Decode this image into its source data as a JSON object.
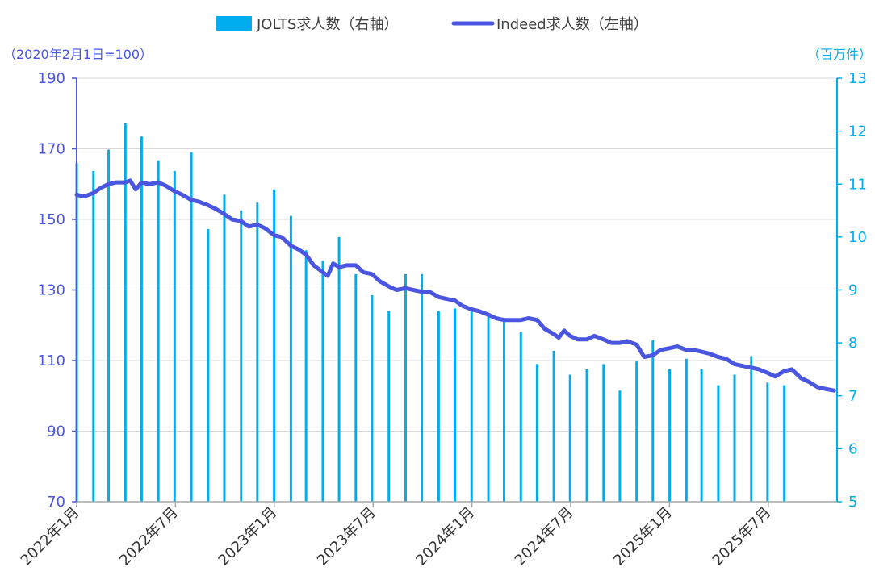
{
  "legend": {
    "bar_label": "JOLTS求人数（右軸）",
    "line_label": "Indeed求人数（左軸）"
  },
  "units": {
    "left": "（2020年2月1日=100）",
    "right": "（百万件）"
  },
  "colors": {
    "bar": "#00aeef",
    "line": "#4a55e0",
    "grid": "#d9d9d9"
  },
  "chart_data": {
    "type": "bar+line",
    "left_axis": {
      "min": 70,
      "max": 190,
      "ticks": [
        70,
        90,
        110,
        130,
        150,
        170,
        190
      ]
    },
    "right_axis": {
      "min": 5,
      "max": 13,
      "ticks": [
        5,
        6,
        7,
        8,
        9,
        10,
        11,
        12,
        13
      ]
    },
    "x_tick_labels": [
      "2022年1月",
      "2022年7月",
      "2023年1月",
      "2023年7月",
      "2024年1月",
      "2024年7月",
      "2025年1月",
      "2025年7月"
    ],
    "bar_series": {
      "name": "JOLTS求人数（右軸）",
      "axis": "right",
      "months": [
        "2022-01",
        "2022-02",
        "2022-03",
        "2022-04",
        "2022-05",
        "2022-06",
        "2022-07",
        "2022-08",
        "2022-09",
        "2022-10",
        "2022-11",
        "2022-12",
        "2023-01",
        "2023-02",
        "2023-03",
        "2023-04",
        "2023-05",
        "2023-06",
        "2023-07",
        "2023-08",
        "2023-09",
        "2023-10",
        "2023-11",
        "2023-12",
        "2024-01",
        "2024-02",
        "2024-03",
        "2024-04",
        "2024-05",
        "2024-06",
        "2024-07",
        "2024-08",
        "2024-09",
        "2024-10",
        "2024-11",
        "2024-12",
        "2025-01",
        "2025-02",
        "2025-03",
        "2025-04",
        "2025-05",
        "2025-06",
        "2025-07",
        "2025-08"
      ],
      "values": [
        11.4,
        11.25,
        11.65,
        12.15,
        11.9,
        11.45,
        11.25,
        11.6,
        10.15,
        10.8,
        10.5,
        10.65,
        10.9,
        10.4,
        9.75,
        9.55,
        10.0,
        9.3,
        8.9,
        8.6,
        9.3,
        9.3,
        8.6,
        8.65,
        8.6,
        8.5,
        8.45,
        8.2,
        7.6,
        7.85,
        7.4,
        7.5,
        7.6,
        7.1,
        7.65,
        8.05,
        7.5,
        7.7,
        7.5,
        7.2,
        7.4,
        7.75,
        7.25,
        7.2
      ]
    },
    "line_series": {
      "name": "Indeed求人数（左軸）",
      "axis": "left",
      "points": [
        [
          "2022-01-01",
          157
        ],
        [
          "2022-01-15",
          156.5
        ],
        [
          "2022-02-01",
          157.5
        ],
        [
          "2022-02-15",
          159
        ],
        [
          "2022-03-01",
          160
        ],
        [
          "2022-03-15",
          160.5
        ],
        [
          "2022-04-01",
          160.5
        ],
        [
          "2022-04-10",
          161
        ],
        [
          "2022-04-20",
          158.5
        ],
        [
          "2022-05-01",
          160.5
        ],
        [
          "2022-05-15",
          160
        ],
        [
          "2022-06-01",
          160.5
        ],
        [
          "2022-06-15",
          159.5
        ],
        [
          "2022-07-01",
          158
        ],
        [
          "2022-07-15",
          157
        ],
        [
          "2022-08-01",
          155.5
        ],
        [
          "2022-08-15",
          155
        ],
        [
          "2022-09-01",
          154
        ],
        [
          "2022-09-15",
          153
        ],
        [
          "2022-10-01",
          151.5
        ],
        [
          "2022-10-15",
          150
        ],
        [
          "2022-11-01",
          149.5
        ],
        [
          "2022-11-15",
          148
        ],
        [
          "2022-12-01",
          148.5
        ],
        [
          "2022-12-15",
          147.5
        ],
        [
          "2023-01-01",
          145.5
        ],
        [
          "2023-01-15",
          145
        ],
        [
          "2023-02-01",
          142.5
        ],
        [
          "2023-02-15",
          141.5
        ],
        [
          "2023-03-01",
          140
        ],
        [
          "2023-03-15",
          137
        ],
        [
          "2023-04-01",
          135
        ],
        [
          "2023-04-10",
          134
        ],
        [
          "2023-04-20",
          137.5
        ],
        [
          "2023-05-01",
          136.5
        ],
        [
          "2023-05-15",
          137
        ],
        [
          "2023-06-01",
          137
        ],
        [
          "2023-06-15",
          135
        ],
        [
          "2023-07-01",
          134.5
        ],
        [
          "2023-07-15",
          132.5
        ],
        [
          "2023-08-01",
          131
        ],
        [
          "2023-08-15",
          130
        ],
        [
          "2023-09-01",
          130.5
        ],
        [
          "2023-09-15",
          130
        ],
        [
          "2023-10-01",
          129.5
        ],
        [
          "2023-10-15",
          129.5
        ],
        [
          "2023-11-01",
          128
        ],
        [
          "2023-11-15",
          127.5
        ],
        [
          "2023-12-01",
          127
        ],
        [
          "2023-12-15",
          125.5
        ],
        [
          "2024-01-01",
          124.5
        ],
        [
          "2024-01-15",
          124
        ],
        [
          "2024-02-01",
          123
        ],
        [
          "2024-02-15",
          122
        ],
        [
          "2024-03-01",
          121.5
        ],
        [
          "2024-03-15",
          121.5
        ],
        [
          "2024-04-01",
          121.5
        ],
        [
          "2024-04-15",
          122
        ],
        [
          "2024-05-01",
          121.5
        ],
        [
          "2024-05-15",
          119
        ],
        [
          "2024-06-01",
          117.5
        ],
        [
          "2024-06-10",
          116.5
        ],
        [
          "2024-06-20",
          118.5
        ],
        [
          "2024-07-01",
          117
        ],
        [
          "2024-07-15",
          116
        ],
        [
          "2024-08-01",
          116
        ],
        [
          "2024-08-15",
          117
        ],
        [
          "2024-09-01",
          116
        ],
        [
          "2024-09-15",
          115
        ],
        [
          "2024-10-01",
          115
        ],
        [
          "2024-10-15",
          115.5
        ],
        [
          "2024-11-01",
          114.5
        ],
        [
          "2024-11-15",
          111
        ],
        [
          "2024-12-01",
          111.5
        ],
        [
          "2024-12-15",
          113
        ],
        [
          "2025-01-01",
          113.5
        ],
        [
          "2025-01-15",
          114
        ],
        [
          "2025-02-01",
          113
        ],
        [
          "2025-02-15",
          113
        ],
        [
          "2025-03-01",
          112.5
        ],
        [
          "2025-03-15",
          112
        ],
        [
          "2025-04-01",
          111
        ],
        [
          "2025-04-15",
          110.5
        ],
        [
          "2025-05-01",
          109
        ],
        [
          "2025-05-15",
          108.5
        ],
        [
          "2025-06-01",
          108
        ],
        [
          "2025-06-15",
          107.5
        ],
        [
          "2025-07-01",
          106.5
        ],
        [
          "2025-07-15",
          105.5
        ],
        [
          "2025-08-01",
          107
        ],
        [
          "2025-08-15",
          107.5
        ],
        [
          "2025-09-01",
          105
        ],
        [
          "2025-09-15",
          104
        ],
        [
          "2025-10-01",
          102.5
        ],
        [
          "2025-10-15",
          102
        ],
        [
          "2025-11-01",
          101.5
        ]
      ]
    },
    "grid": "horizontal",
    "legend_position": "top"
  }
}
